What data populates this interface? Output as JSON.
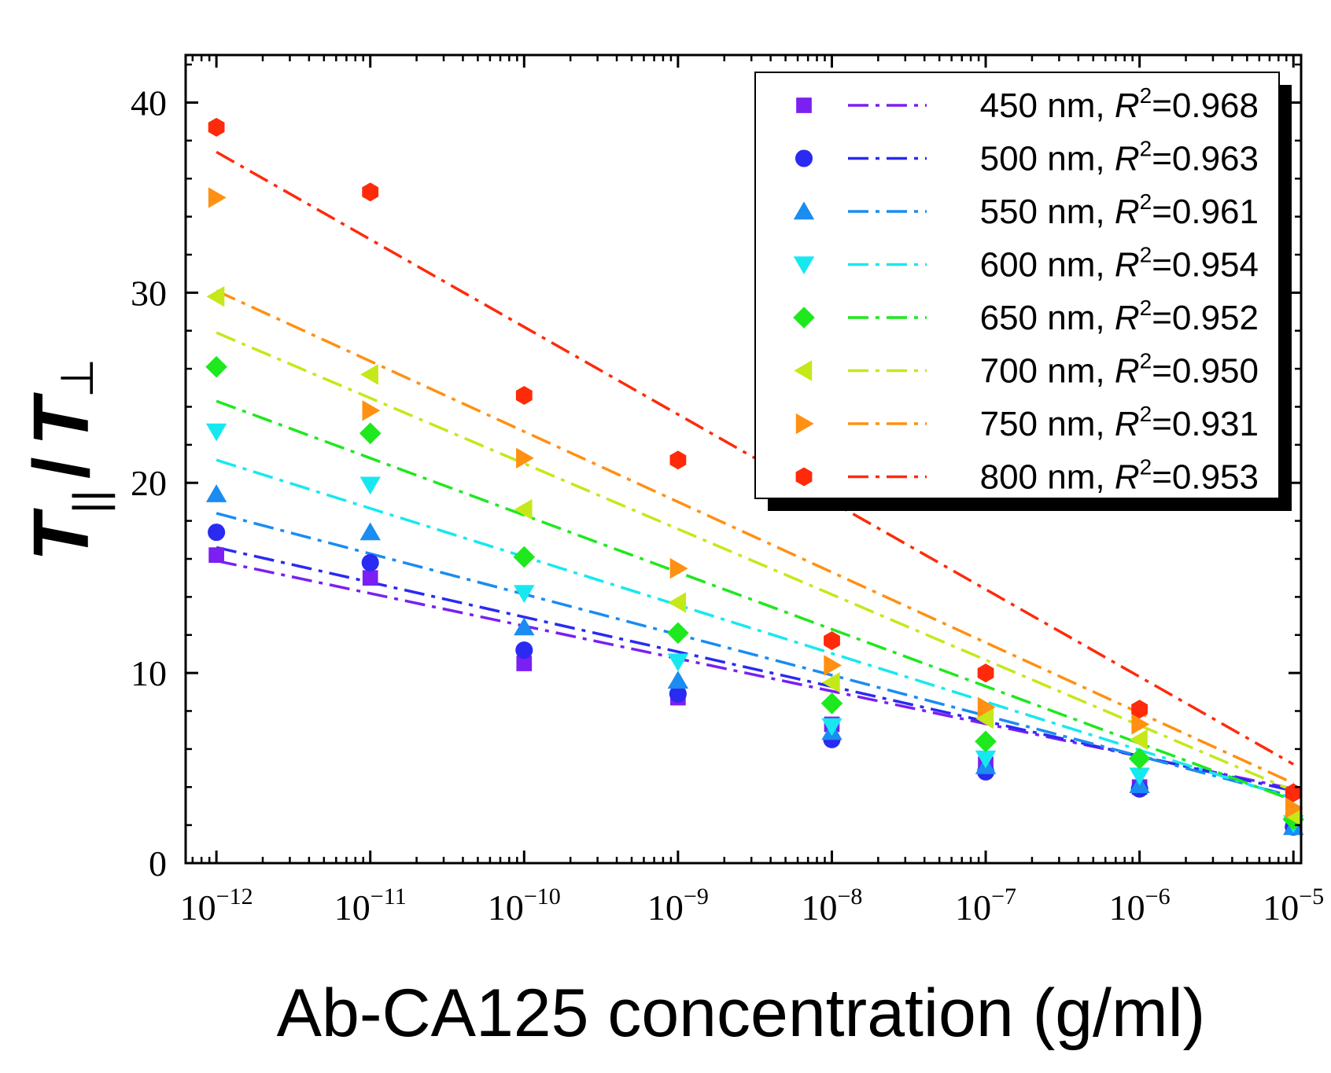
{
  "chart_data": {
    "type": "scatter",
    "title": "",
    "xlabel": "Ab-CA125 concentration (g/ml)",
    "ylabel": {
      "base1": "T",
      "sub1": "||",
      "slash": "/",
      "base2": "T",
      "sub2": "⊥"
    },
    "xscale": "log",
    "xlim_exponent": [
      -12.2,
      -4.95
    ],
    "ylim": [
      0,
      42.5
    ],
    "x_exponents": [
      -12,
      -11,
      -10,
      -9,
      -8,
      -7,
      -6,
      -5
    ],
    "x_tick_labels": [
      {
        "base": "10",
        "exp": "−12"
      },
      {
        "base": "10",
        "exp": "−11"
      },
      {
        "base": "10",
        "exp": "−10"
      },
      {
        "base": "10",
        "exp": "−9"
      },
      {
        "base": "10",
        "exp": "−8"
      },
      {
        "base": "10",
        "exp": "−7"
      },
      {
        "base": "10",
        "exp": "−6"
      },
      {
        "base": "10",
        "exp": "−5"
      }
    ],
    "y_ticks": [
      0,
      10,
      20,
      30,
      40
    ],
    "y_tick_labels": [
      "0",
      "10",
      "20",
      "30",
      "40"
    ],
    "legend_position": "top-right",
    "series": [
      {
        "name": "450 nm",
        "r2_label": "R",
        "r2_sup": "2",
        "r2_value": "=0.968",
        "color": "#7b1ff2",
        "marker": "square",
        "values": [
          16.2,
          15.0,
          10.5,
          8.7,
          7.3,
          5.2,
          4.0,
          1.9
        ],
        "fit": [
          15.9,
          3.9
        ]
      },
      {
        "name": "500 nm",
        "r2_label": "R",
        "r2_sup": "2",
        "r2_value": "=0.963",
        "color": "#2a2af2",
        "marker": "circle",
        "values": [
          17.4,
          15.8,
          11.2,
          8.9,
          6.5,
          4.8,
          3.9,
          1.9
        ],
        "fit": [
          16.6,
          3.8
        ]
      },
      {
        "name": "550 nm",
        "r2_label": "R",
        "r2_sup": "2",
        "r2_value": "=0.961",
        "color": "#1a8cf2",
        "marker": "triangle-up",
        "values": [
          19.4,
          17.4,
          12.4,
          9.6,
          6.9,
          5.1,
          4.1,
          1.9
        ],
        "fit": [
          18.4,
          3.5
        ]
      },
      {
        "name": "600 nm",
        "r2_label": "R",
        "r2_sup": "2",
        "r2_value": "=0.954",
        "color": "#17e8f0",
        "marker": "triangle-down",
        "values": [
          22.7,
          19.9,
          14.2,
          10.6,
          7.2,
          5.5,
          4.6,
          2.1
        ],
        "fit": [
          21.2,
          3.4
        ]
      },
      {
        "name": "650 nm",
        "r2_label": "R",
        "r2_sup": "2",
        "r2_value": "=0.952",
        "color": "#1ee81e",
        "marker": "diamond",
        "values": [
          26.1,
          22.6,
          16.1,
          12.1,
          8.4,
          6.4,
          5.5,
          2.3
        ],
        "fit": [
          24.3,
          3.3
        ]
      },
      {
        "name": "700 nm",
        "r2_label": "R",
        "r2_sup": "2",
        "r2_value": "=0.950",
        "color": "#c4e81a",
        "marker": "triangle-left",
        "values": [
          29.8,
          25.7,
          18.6,
          13.7,
          9.5,
          7.6,
          6.5,
          2.5
        ],
        "fit": [
          27.9,
          3.8
        ]
      },
      {
        "name": "750 nm",
        "r2_label": "R",
        "r2_sup": "2",
        "r2_value": "=0.931",
        "color": "#ff9012",
        "marker": "triangle-right",
        "values": [
          35.0,
          23.8,
          21.3,
          15.5,
          10.4,
          8.2,
          7.3,
          2.9
        ],
        "fit": [
          30.1,
          4.2
        ]
      },
      {
        "name": "800 nm",
        "r2_label": "R",
        "r2_sup": "2",
        "r2_value": "=0.953",
        "color": "#ff2a0a",
        "marker": "hexagon",
        "values": [
          38.7,
          35.3,
          24.6,
          21.2,
          11.7,
          10.0,
          8.1,
          3.7
        ],
        "fit": [
          37.4,
          5.2
        ]
      }
    ]
  }
}
